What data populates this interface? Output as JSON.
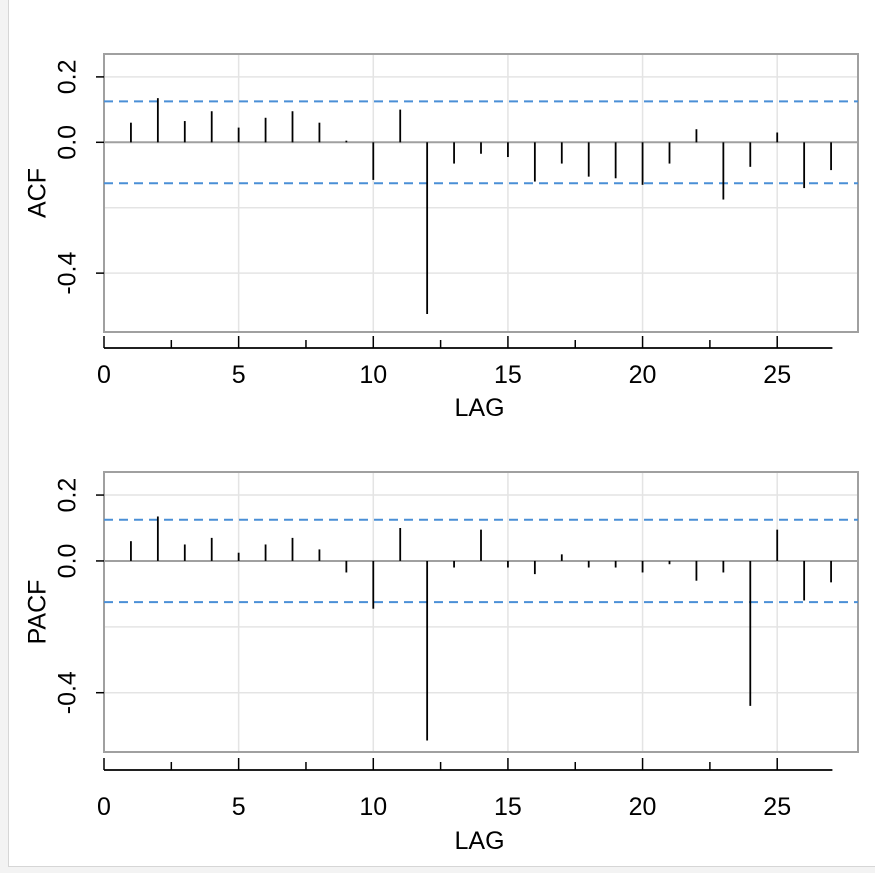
{
  "chart_data": [
    {
      "type": "bar",
      "ylabel": "ACF",
      "xlabel": "LAG",
      "xlim": [
        0,
        28
      ],
      "ylim": [
        -0.58,
        0.27
      ],
      "xticks": [
        0,
        5,
        10,
        15,
        20,
        25
      ],
      "yticks": [
        "-0.4",
        "0.0",
        "0.2"
      ],
      "ytick_values": [
        -0.4,
        0.0,
        0.2
      ],
      "grid": true,
      "confidence_band": 0.125,
      "x": [
        1,
        2,
        3,
        4,
        5,
        6,
        7,
        8,
        9,
        10,
        11,
        12,
        13,
        14,
        15,
        16,
        17,
        18,
        19,
        20,
        21,
        22,
        23,
        24,
        25,
        26,
        27
      ],
      "values": [
        0.06,
        0.135,
        0.065,
        0.095,
        0.045,
        0.075,
        0.095,
        0.06,
        0.005,
        -0.115,
        0.1,
        -0.525,
        -0.065,
        -0.035,
        -0.045,
        -0.12,
        -0.065,
        -0.105,
        -0.11,
        -0.13,
        -0.065,
        0.04,
        -0.175,
        -0.075,
        0.03,
        -0.14,
        -0.085
      ]
    },
    {
      "type": "bar",
      "ylabel": "PACF",
      "xlabel": "LAG",
      "xlim": [
        0,
        28
      ],
      "ylim": [
        -0.58,
        0.27
      ],
      "xticks": [
        0,
        5,
        10,
        15,
        20,
        25
      ],
      "yticks": [
        "-0.4",
        "0.0",
        "0.2"
      ],
      "ytick_values": [
        -0.4,
        0.0,
        0.2
      ],
      "grid": true,
      "confidence_band": 0.125,
      "x": [
        1,
        2,
        3,
        4,
        5,
        6,
        7,
        8,
        9,
        10,
        11,
        12,
        13,
        14,
        15,
        16,
        17,
        18,
        19,
        20,
        21,
        22,
        23,
        24,
        25,
        26,
        27
      ],
      "values": [
        0.06,
        0.135,
        0.05,
        0.07,
        0.025,
        0.05,
        0.07,
        0.035,
        -0.035,
        -0.145,
        0.1,
        -0.545,
        -0.02,
        0.095,
        -0.02,
        -0.04,
        0.02,
        -0.02,
        -0.02,
        -0.035,
        -0.01,
        -0.06,
        -0.035,
        -0.44,
        0.095,
        -0.12,
        -0.065
      ]
    }
  ],
  "colors": {
    "frame": "#a0a0a0",
    "grid": "#e4e4e4",
    "zero_line": "#a0a0a0",
    "confidence_line": "#4a8fd6",
    "bars": "#000000"
  }
}
